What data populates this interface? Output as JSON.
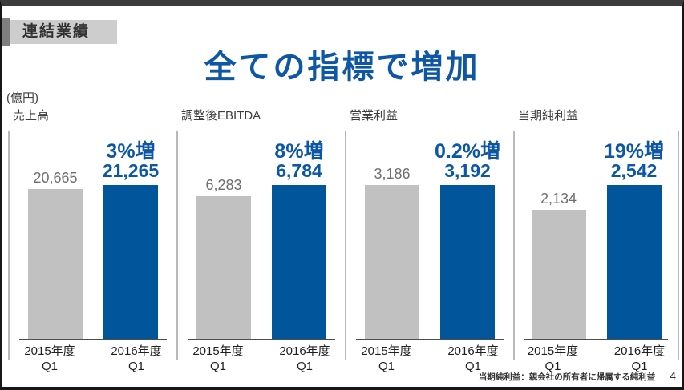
{
  "slide": {
    "badge_label": "連結業績",
    "title": "全ての指標で増加",
    "unit_label": "(億円)",
    "footnote": "当期純利益：親会社の所有者に帰属する純利益",
    "page_number": "4"
  },
  "colors": {
    "accent_blue_text": "#0b57a5",
    "title_blue": "#0e57a5",
    "bar_blue": "#00559b",
    "bar_gray": "#c1c1c1",
    "badge_bg": "#cdcdcd",
    "badge_accent": "#7f7f7f",
    "axis_line": "#4d4d4d",
    "panel_line": "#b9b9b9"
  },
  "chart_data": [
    {
      "type": "bar",
      "title": "売上高",
      "categories": [
        "2015年度 Q1",
        "2016年度 Q1"
      ],
      "category_lines": [
        [
          "2015年度",
          "Q1"
        ],
        [
          "2016年度",
          "Q1"
        ]
      ],
      "values": [
        20665,
        21265
      ],
      "value_labels": [
        "20,665",
        "21,265"
      ],
      "change_label": "3%増",
      "series": [
        "2015年度Q1",
        "2016年度Q1"
      ],
      "grid": false,
      "legend": false
    },
    {
      "type": "bar",
      "title": "調整後EBITDA",
      "categories": [
        "2015年度 Q1",
        "2016年度 Q1"
      ],
      "category_lines": [
        [
          "2015年度",
          "Q1"
        ],
        [
          "2016年度",
          "Q1"
        ]
      ],
      "values": [
        6283,
        6784
      ],
      "value_labels": [
        "6,283",
        "6,784"
      ],
      "change_label": "8%増",
      "series": [
        "2015年度Q1",
        "2016年度Q1"
      ],
      "grid": false,
      "legend": false
    },
    {
      "type": "bar",
      "title": "営業利益",
      "categories": [
        "2015年度 Q1",
        "2016年度 Q1"
      ],
      "category_lines": [
        [
          "2015年度",
          "Q1"
        ],
        [
          "2016年度",
          "Q1"
        ]
      ],
      "values": [
        3186,
        3192
      ],
      "value_labels": [
        "3,186",
        "3,192"
      ],
      "change_label": "0.2%増",
      "series": [
        "2015年度Q1",
        "2016年度Q1"
      ],
      "grid": false,
      "legend": false
    },
    {
      "type": "bar",
      "title": "当期純利益",
      "categories": [
        "2015年度 Q1",
        "2016年度 Q1"
      ],
      "category_lines": [
        [
          "2015年度",
          "Q1"
        ],
        [
          "2016年度",
          "Q1"
        ]
      ],
      "values": [
        2134,
        2542
      ],
      "value_labels": [
        "2,134",
        "2,542"
      ],
      "change_label": "19%増",
      "series": [
        "2015年度Q1",
        "2016年度Q1"
      ],
      "grid": false,
      "legend": false
    }
  ]
}
